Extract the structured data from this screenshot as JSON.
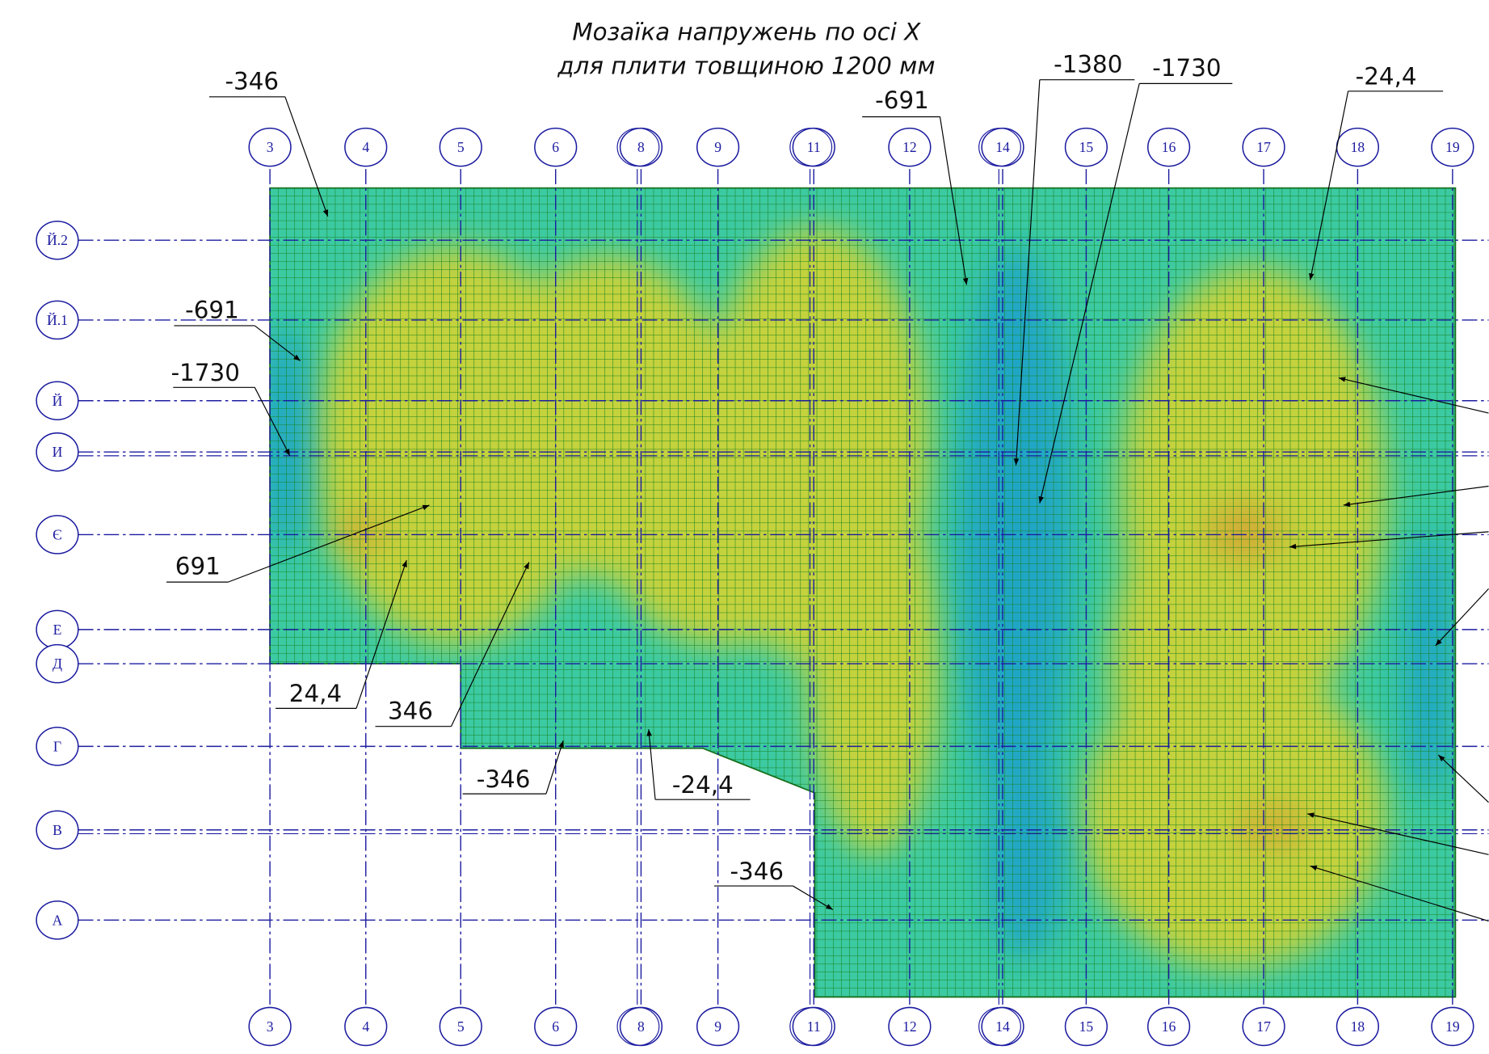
{
  "title": [
    "Мозаїка напружень по осі X",
    "для плити товщиною 1200 мм"
  ],
  "columns": [
    "3",
    "4",
    "5",
    "6",
    "8",
    "9",
    "11",
    "12",
    "14",
    "15",
    "16",
    "17",
    "18",
    "19"
  ],
  "rows": [
    "Й.2",
    "Й.1",
    "Й",
    "И",
    "Є",
    "Е",
    "Д",
    "Г",
    "В",
    "А"
  ],
  "callouts": [
    "-346",
    "-691",
    "-1730",
    "691",
    "24,4",
    "346",
    "-346",
    "-24,4",
    "-346",
    "-691",
    "-1380",
    "-1730",
    "-24,4"
  ]
}
